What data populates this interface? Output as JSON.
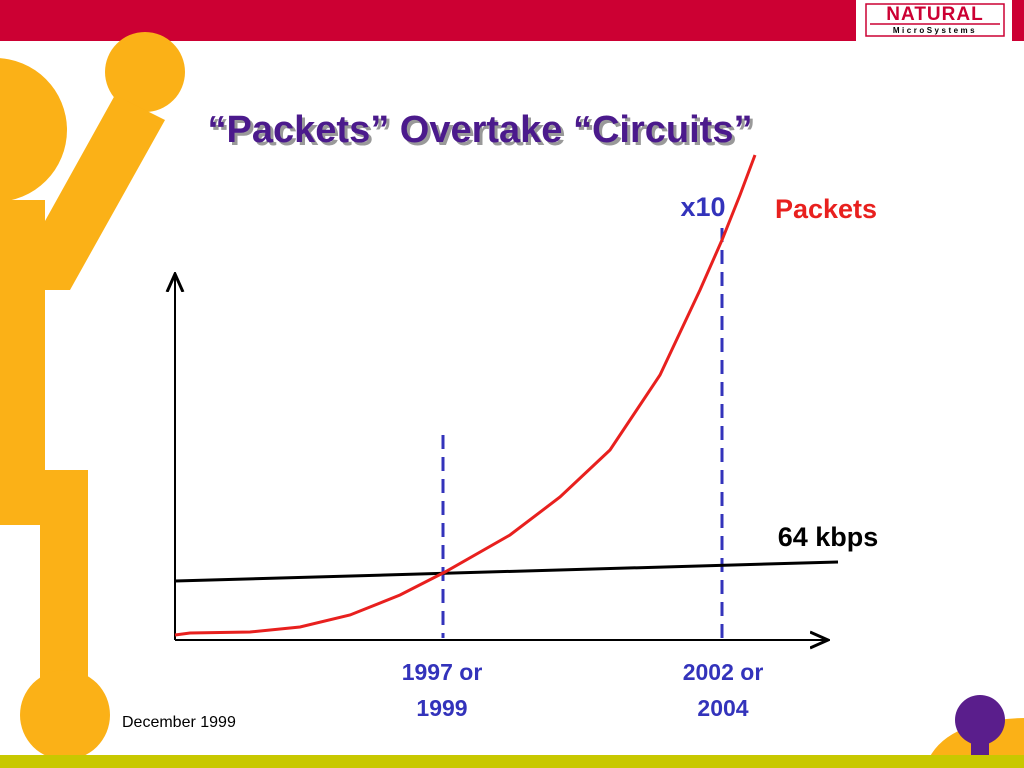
{
  "header": {
    "title": "“Packets” Overtake “Circuits”",
    "logo": {
      "name": "NATURAL",
      "subname": "MicroSystems"
    }
  },
  "labels": {
    "multiplier": "x10",
    "packets": "Packets",
    "circuits": "64 kbps",
    "crossover": [
      "1997 or",
      "1999"
    ],
    "later": [
      "2002 or",
      "2004"
    ]
  },
  "footer": {
    "date": "December 1999"
  }
}
